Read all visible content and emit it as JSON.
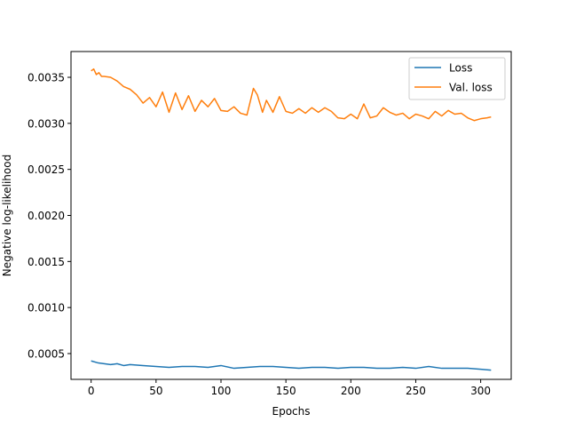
{
  "chart_data": {
    "type": "line",
    "title": "",
    "xlabel": "Epochs",
    "ylabel": "Negative log-likelihood",
    "xlim": [
      -15.5,
      323.5
    ],
    "ylim": [
      0.00022,
      0.00378
    ],
    "xticks": [
      0,
      50,
      100,
      150,
      200,
      250,
      300
    ],
    "yticks": [
      0.0005,
      0.001,
      0.0015,
      0.002,
      0.0025,
      0.003,
      0.0035
    ],
    "ytick_labels": [
      "0.0005",
      "0.0010",
      "0.0015",
      "0.0020",
      "0.0025",
      "0.0030",
      "0.0035"
    ],
    "grid": false,
    "legend": "top-right",
    "series": [
      {
        "name": "Loss",
        "color": "#1f77b4",
        "x": [
          0,
          5,
          10,
          15,
          20,
          25,
          30,
          40,
          50,
          60,
          70,
          80,
          90,
          100,
          110,
          120,
          130,
          140,
          150,
          160,
          170,
          180,
          190,
          200,
          210,
          220,
          230,
          240,
          250,
          260,
          270,
          280,
          290,
          300,
          308
        ],
        "y": [
          0.00042,
          0.0004,
          0.00039,
          0.00038,
          0.00039,
          0.00037,
          0.00038,
          0.00037,
          0.00036,
          0.00035,
          0.00036,
          0.00036,
          0.00035,
          0.00037,
          0.00034,
          0.00035,
          0.00036,
          0.00036,
          0.00035,
          0.00034,
          0.00035,
          0.00035,
          0.00034,
          0.00035,
          0.00035,
          0.00034,
          0.00034,
          0.00035,
          0.00034,
          0.00036,
          0.00034,
          0.00034,
          0.00034,
          0.00033,
          0.00032
        ]
      },
      {
        "name": "Val. loss",
        "color": "#ff7f0e",
        "x": [
          0,
          2,
          4,
          6,
          8,
          10,
          15,
          20,
          25,
          30,
          35,
          40,
          45,
          50,
          55,
          60,
          65,
          70,
          75,
          80,
          85,
          90,
          95,
          100,
          105,
          110,
          115,
          120,
          125,
          128,
          132,
          135,
          140,
          145,
          150,
          155,
          160,
          165,
          170,
          175,
          180,
          185,
          190,
          195,
          200,
          205,
          210,
          215,
          220,
          225,
          230,
          235,
          240,
          245,
          250,
          255,
          260,
          265,
          270,
          275,
          280,
          285,
          290,
          295,
          300,
          305,
          308
        ],
        "y": [
          0.00357,
          0.00359,
          0.00353,
          0.00355,
          0.00351,
          0.00351,
          0.0035,
          0.00346,
          0.0034,
          0.00337,
          0.00331,
          0.00322,
          0.00328,
          0.00318,
          0.00334,
          0.00312,
          0.00333,
          0.00315,
          0.0033,
          0.00313,
          0.00325,
          0.00318,
          0.00327,
          0.00314,
          0.00313,
          0.00318,
          0.00311,
          0.00309,
          0.00338,
          0.00331,
          0.00312,
          0.00325,
          0.00312,
          0.00329,
          0.00313,
          0.00311,
          0.00316,
          0.00311,
          0.00317,
          0.00312,
          0.00317,
          0.00313,
          0.00306,
          0.00305,
          0.0031,
          0.00305,
          0.00321,
          0.00306,
          0.00308,
          0.00317,
          0.00312,
          0.00309,
          0.00311,
          0.00305,
          0.0031,
          0.00308,
          0.00305,
          0.00313,
          0.00308,
          0.00314,
          0.0031,
          0.00311,
          0.00306,
          0.00303,
          0.00305,
          0.00306,
          0.00307
        ]
      }
    ]
  }
}
